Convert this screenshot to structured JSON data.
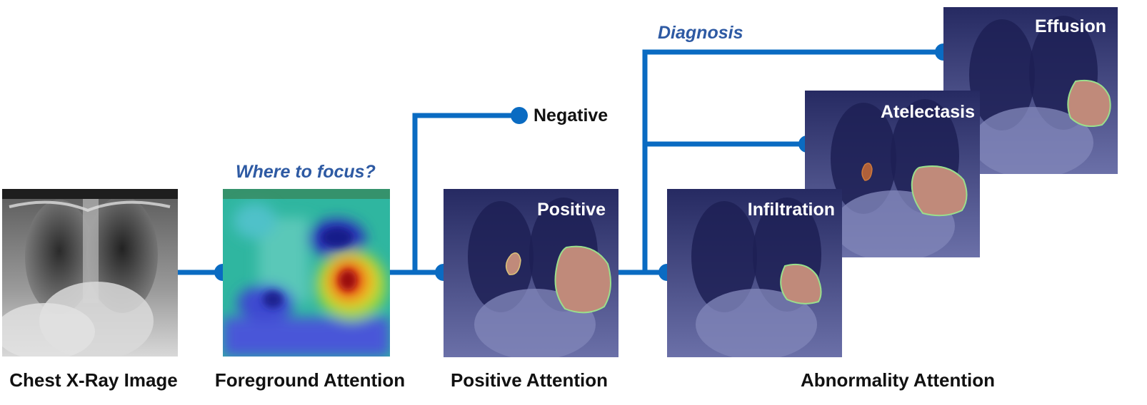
{
  "colors": {
    "connector": "#0a6bc2",
    "annotation_text": "#2e5aa3",
    "caption_text": "#111111",
    "panel_label": "#ffffff",
    "lesion": "#c08a7a",
    "attention_overlay": "#3c3f9a"
  },
  "stages": [
    {
      "caption": "Chest X-Ray Image"
    },
    {
      "caption": "Foreground Attention",
      "question": "Where to focus?"
    },
    {
      "caption": "Positive Attention",
      "panel_label": "Positive",
      "branch_label": "Negative"
    },
    {
      "caption": "Abnormality Attention",
      "branch_heading": "Diagnosis",
      "findings": [
        {
          "label": "Infiltration"
        },
        {
          "label": "Atelectasis"
        },
        {
          "label": "Effusion"
        }
      ]
    }
  ]
}
